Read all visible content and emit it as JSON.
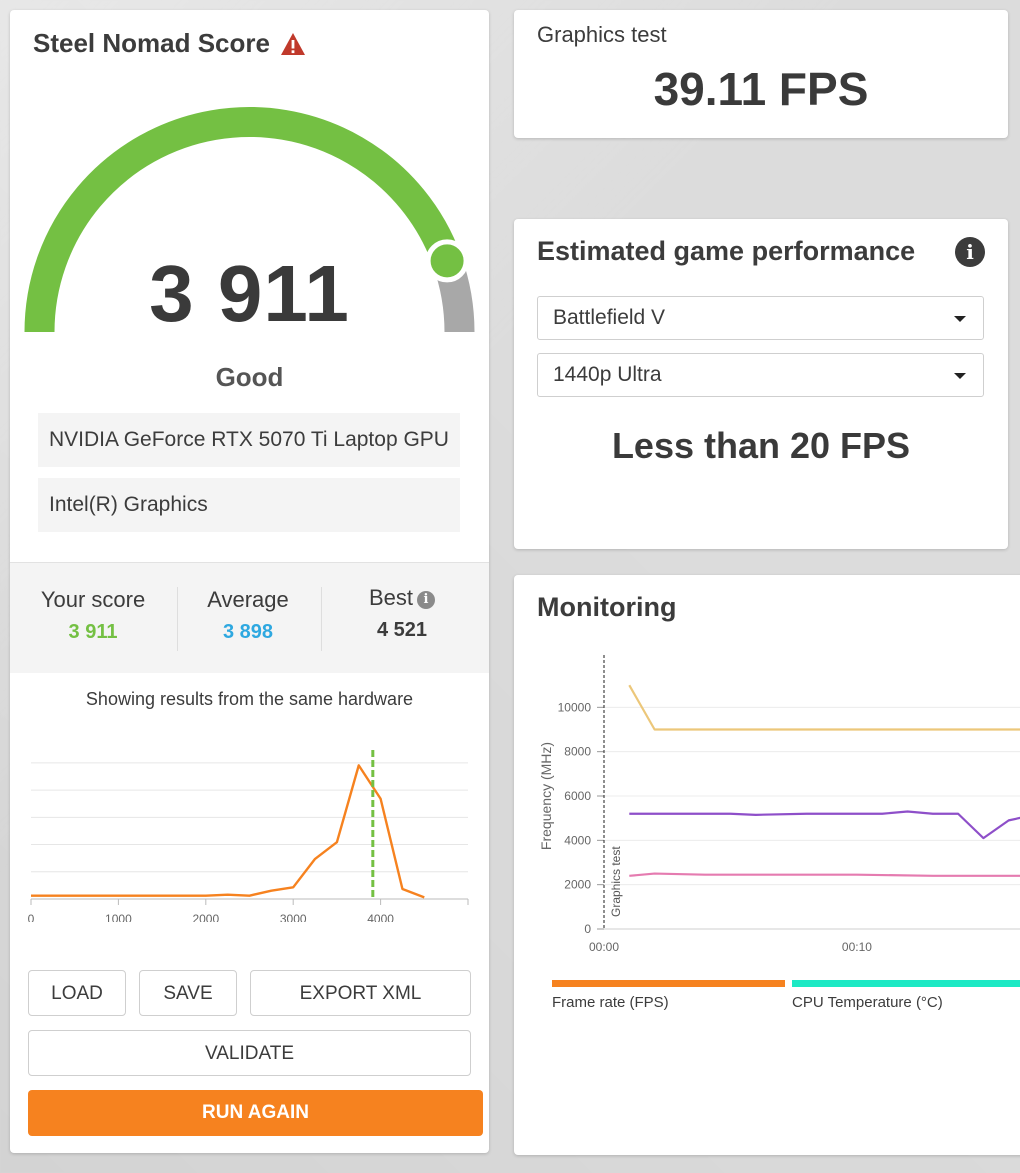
{
  "score_card": {
    "title": "Steel Nomad Score",
    "warning_icon": "warning-triangle-icon",
    "score": "3 911",
    "gauge_fraction": 0.89,
    "rating": "Good",
    "hardware": [
      "NVIDIA GeForce RTX 5070 Ti Laptop GPU",
      "Intel(R) Graphics"
    ],
    "stats": {
      "your_score_label": "Your score",
      "your_score": "3 911",
      "average_label": "Average",
      "average": "3 898",
      "best_label": "Best",
      "best": "4 521"
    },
    "histogram_caption": "Showing results from the same hardware",
    "buttons": {
      "load": "LOAD",
      "save": "SAVE",
      "export": "EXPORT XML",
      "validate": "VALIDATE",
      "run_again": "RUN AGAIN"
    },
    "colors": {
      "gauge": "#74c043",
      "gauge_rest": "#a8a8a8",
      "your_score": "#74c043",
      "average": "#2ea8e0",
      "accent": "#f6821f"
    }
  },
  "graphics_test": {
    "label": "Graphics test",
    "value": "39.11 FPS"
  },
  "game_performance": {
    "title": "Estimated game performance",
    "info_icon": "info-icon",
    "game": "Battlefield V",
    "preset": "1440p Ultra",
    "result": "Less than 20 FPS"
  },
  "monitoring": {
    "title": "Monitoring",
    "legend": [
      {
        "label": "Frame rate (FPS)",
        "color": "#f6821f"
      },
      {
        "label": "CPU Temperature (°C)",
        "color": "#1de9c4"
      }
    ]
  },
  "chart_data": [
    {
      "type": "line",
      "x": [
        0,
        250,
        500,
        750,
        1000,
        1250,
        1500,
        1750,
        2000,
        2250,
        2500,
        2750,
        3000,
        3250,
        3500,
        3750,
        4000,
        4250,
        4500
      ],
      "series": [
        {
          "values": [
            1,
            1,
            1,
            1,
            1,
            1,
            1,
            1,
            1,
            1.3,
            1,
            2.5,
            3.5,
            12,
            17,
            40,
            30,
            3,
            0.5
          ],
          "color": "#f6821f"
        }
      ],
      "xticks": [
        "0",
        "1000",
        "2000",
        "3000",
        "4000"
      ],
      "xlim": [
        0,
        5000
      ],
      "ylim": [
        0,
        44
      ],
      "marker_x": 3911,
      "marker_color": "#74c043",
      "grid": true
    },
    {
      "type": "line",
      "ylabel": "Frequency (MHz)",
      "yticks": [
        "0",
        "2000",
        "4000",
        "6000",
        "8000",
        "10000"
      ],
      "ylim": [
        0,
        12000
      ],
      "xticks": [
        "00:00",
        "00:10"
      ],
      "xlim": [
        0,
        17
      ],
      "marker_label": "Graphics test",
      "marker_x": 0,
      "grid": true,
      "series": [
        {
          "color": "#ecc77a",
          "x": [
            1,
            2,
            17
          ],
          "values": [
            11000,
            9000,
            9000
          ]
        },
        {
          "color": "#8e4fc9",
          "x": [
            1,
            3,
            5,
            6,
            8,
            11,
            12,
            13,
            14,
            15,
            16,
            17
          ],
          "values": [
            5200,
            5200,
            5200,
            5150,
            5200,
            5200,
            5300,
            5200,
            5200,
            4100,
            4900,
            5150
          ]
        },
        {
          "color": "#e57bb0",
          "x": [
            1,
            2,
            4,
            6,
            8,
            10,
            13,
            15,
            17
          ],
          "values": [
            2400,
            2500,
            2450,
            2450,
            2450,
            2450,
            2400,
            2400,
            2400
          ]
        }
      ]
    }
  ]
}
